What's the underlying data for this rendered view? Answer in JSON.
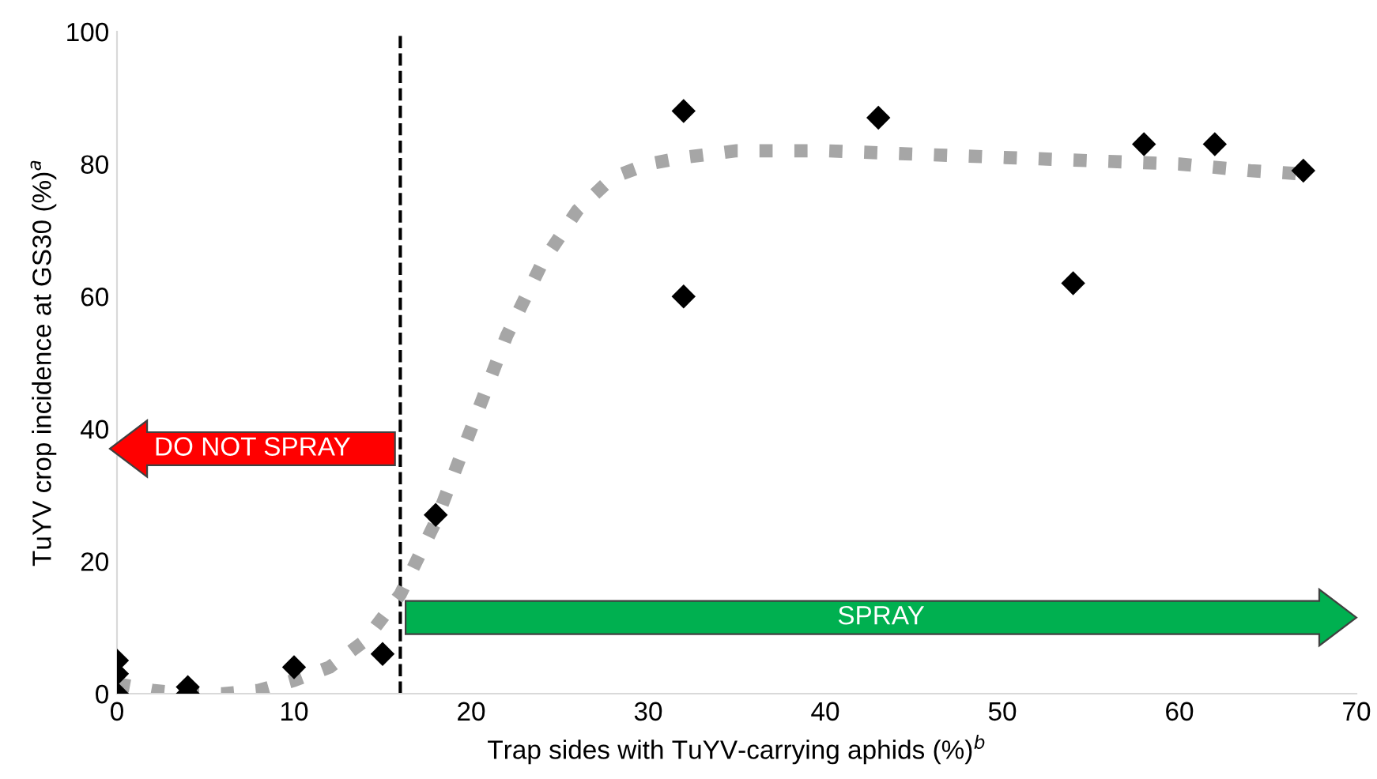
{
  "chart_data": {
    "type": "scatter",
    "xlabel": "Trap sides with TuYV-carrying aphids (%)$^{b}$",
    "ylabel": "TuYV crop incidence at GS30 (%)$^{a}$",
    "xlim": [
      0,
      70
    ],
    "ylim": [
      0,
      100
    ],
    "xticks": [
      0,
      10,
      20,
      30,
      40,
      50,
      60,
      70
    ],
    "yticks": [
      0,
      20,
      40,
      60,
      80,
      100
    ],
    "grid": false,
    "legend": false,
    "series": [
      {
        "color": "#000000",
        "marker": "diamond",
        "x": [
          0,
          0,
          0,
          4,
          4,
          10,
          15,
          18,
          32,
          32,
          43,
          54,
          58,
          62,
          67
        ],
        "values": [
          5,
          3,
          0,
          1,
          0,
          4,
          6,
          27,
          88,
          60,
          87,
          62,
          83,
          83,
          79
        ]
      },
      {
        "type": "line",
        "color": "#a6a6a6",
        "line_style": "dotted",
        "marker": "none",
        "x": [
          0,
          2,
          4,
          6,
          8,
          10,
          12,
          14,
          16,
          18,
          20,
          22,
          24,
          26,
          28,
          30,
          32,
          35,
          40,
          45,
          50,
          55,
          60,
          64,
          67
        ],
        "values": [
          1.5,
          0.5,
          0,
          0,
          0.5,
          2,
          4,
          8,
          15,
          26,
          40,
          54,
          65,
          73,
          78,
          80,
          81,
          82,
          82,
          81.5,
          81,
          80.5,
          80,
          79,
          78.5
        ]
      }
    ],
    "ref_lines": [
      {
        "axis": "x",
        "value": 16,
        "color": "#000000",
        "line_style": "dashed"
      }
    ],
    "annotations": [
      "DO NOT SPRAY",
      "SPRAY"
    ]
  }
}
